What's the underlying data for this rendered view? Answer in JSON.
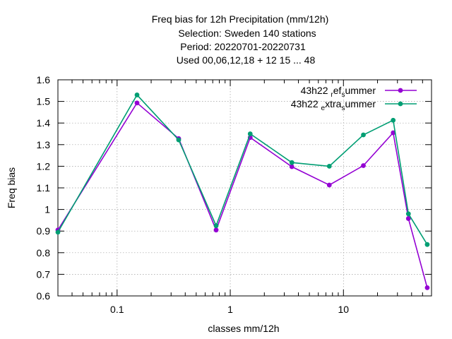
{
  "chart_data": {
    "type": "line",
    "title_lines": [
      "Freq bias  for 12h Precipitation (mm/12h)",
      "Selection: Sweden    140 stations",
      "Period: 20220701-20220731",
      "Used  00,06,12,18  + 12 15 ... 48"
    ],
    "xlabel": "classes mm/12h",
    "ylabel": "Freq bias",
    "xscale": "log",
    "xlim": [
      0.03,
      60
    ],
    "ylim": [
      0.6,
      1.6
    ],
    "xticks": [
      {
        "value": 0.1,
        "label": "0.1"
      },
      {
        "value": 1,
        "label": "1"
      },
      {
        "value": 10,
        "label": "10"
      }
    ],
    "yticks": [
      {
        "value": 0.6,
        "label": "0.6"
      },
      {
        "value": 0.7,
        "label": "0.7"
      },
      {
        "value": 0.8,
        "label": "0.8"
      },
      {
        "value": 0.9,
        "label": "0.9"
      },
      {
        "value": 1.0,
        "label": "1"
      },
      {
        "value": 1.1,
        "label": "1.1"
      },
      {
        "value": 1.2,
        "label": "1.2"
      },
      {
        "value": 1.3,
        "label": "1.3"
      },
      {
        "value": 1.4,
        "label": "1.4"
      },
      {
        "value": 1.5,
        "label": "1.5"
      },
      {
        "value": 1.6,
        "label": "1.6"
      }
    ],
    "grid": true,
    "legend_position": "top-right",
    "x": [
      0.03,
      0.15,
      0.35,
      0.75,
      1.5,
      3.5,
      7.5,
      15,
      27.5,
      37.5,
      55
    ],
    "series": [
      {
        "name_main": "43h22",
        "name_parts": [
          {
            "text": "r",
            "sub": true
          },
          {
            "text": "ef",
            "sub": false
          },
          {
            "text": "s",
            "sub": true
          },
          {
            "text": "ummer",
            "sub": false
          }
        ],
        "color": "#9400d3",
        "marker": "circle",
        "values": [
          0.905,
          1.493,
          1.328,
          0.905,
          1.333,
          1.198,
          1.113,
          1.203,
          1.355,
          0.958,
          0.638
        ]
      },
      {
        "name_main": "43h22",
        "name_parts": [
          {
            "text": "e",
            "sub": true
          },
          {
            "text": "xtra",
            "sub": false
          },
          {
            "text": "s",
            "sub": true
          },
          {
            "text": "ummer",
            "sub": false
          }
        ],
        "color": "#009e73",
        "marker": "circle",
        "values": [
          0.895,
          1.53,
          1.322,
          0.925,
          1.35,
          1.217,
          1.2,
          1.345,
          1.413,
          0.98,
          0.838
        ]
      }
    ]
  }
}
